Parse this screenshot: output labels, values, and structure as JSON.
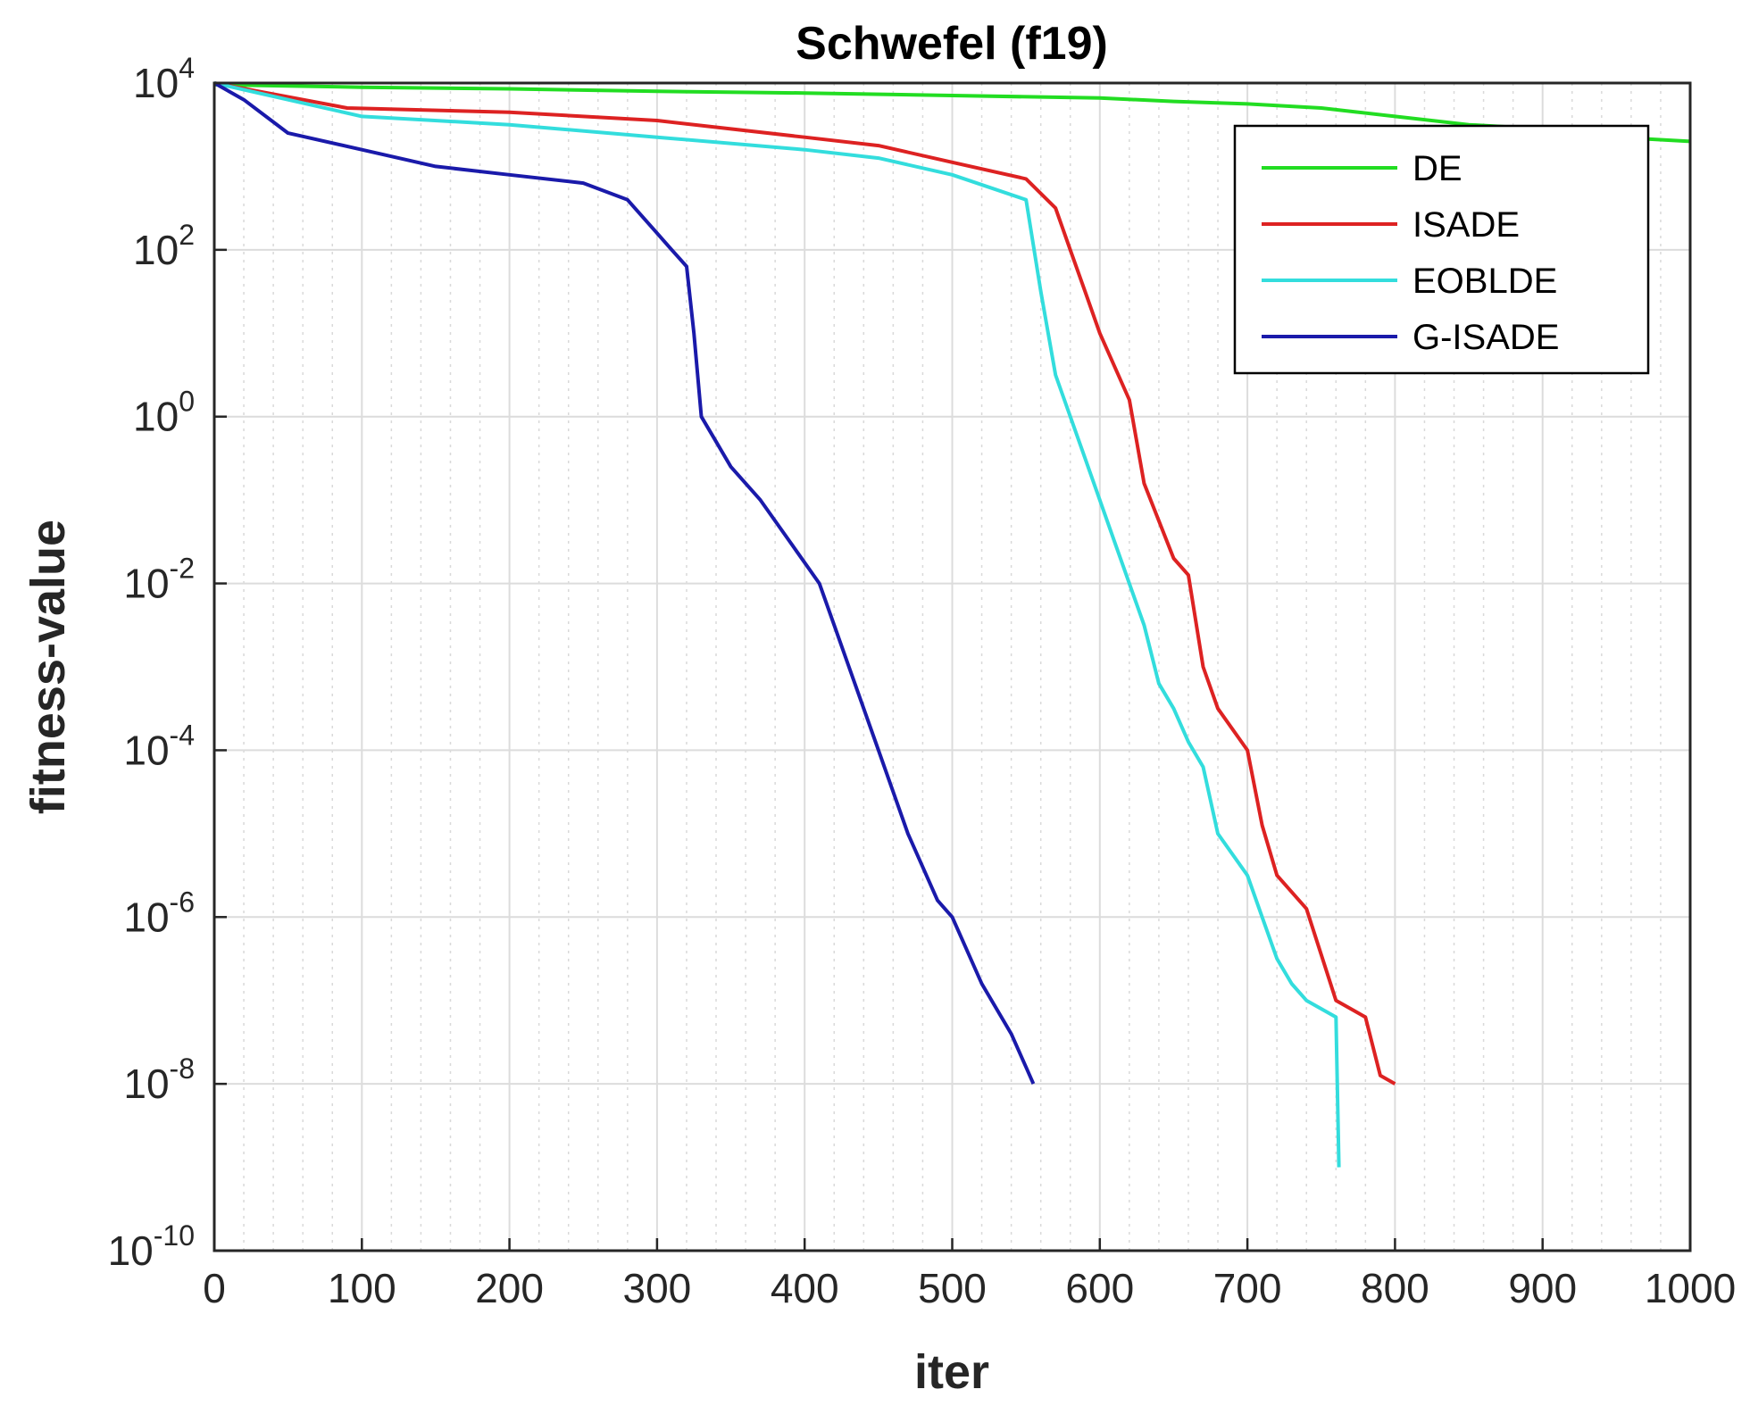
{
  "chart_data": {
    "type": "line",
    "title": "Schwefel (f19)",
    "xlabel": "iter",
    "ylabel": "fitness-value",
    "xlim": [
      0,
      1000
    ],
    "ylim_log10": [
      -10,
      4
    ],
    "yscale": "log",
    "grid": true,
    "legend_position": "top-right",
    "x_ticks": [
      {
        "value": 0,
        "label": "0"
      },
      {
        "value": 100,
        "label": "100"
      },
      {
        "value": 200,
        "label": "200"
      },
      {
        "value": 300,
        "label": "300"
      },
      {
        "value": 400,
        "label": "400"
      },
      {
        "value": 500,
        "label": "500"
      },
      {
        "value": 600,
        "label": "600"
      },
      {
        "value": 700,
        "label": "700"
      },
      {
        "value": 800,
        "label": "800"
      },
      {
        "value": 900,
        "label": "900"
      },
      {
        "value": 1000,
        "label": "1000"
      }
    ],
    "y_ticks": [
      {
        "exp": 4,
        "base": "10",
        "sup": "4"
      },
      {
        "exp": 2,
        "base": "10",
        "sup": "2"
      },
      {
        "exp": 0,
        "base": "10",
        "sup": "0"
      },
      {
        "exp": -2,
        "base": "10",
        "sup": "-2"
      },
      {
        "exp": -4,
        "base": "10",
        "sup": "-4"
      },
      {
        "exp": -6,
        "base": "10",
        "sup": "-6"
      },
      {
        "exp": -8,
        "base": "10",
        "sup": "-8"
      },
      {
        "exp": -10,
        "base": "10",
        "sup": "-10"
      }
    ],
    "series": [
      {
        "name": "DE",
        "color": "#22dd22",
        "x": [
          0,
          100,
          200,
          300,
          400,
          500,
          600,
          650,
          700,
          750,
          800,
          850,
          900,
          950,
          1000
        ],
        "log10_y": [
          3.98,
          3.95,
          3.93,
          3.9,
          3.88,
          3.85,
          3.82,
          3.78,
          3.75,
          3.7,
          3.6,
          3.5,
          3.45,
          3.35,
          3.3
        ]
      },
      {
        "name": "ISADE",
        "color": "#dd2222",
        "x": [
          0,
          90,
          200,
          300,
          350,
          400,
          450,
          500,
          550,
          570,
          580,
          590,
          600,
          620,
          630,
          650,
          660,
          670,
          680,
          700,
          710,
          720,
          740,
          760,
          780,
          790,
          800
        ],
        "log10_y": [
          4.0,
          3.7,
          3.65,
          3.55,
          3.45,
          3.35,
          3.25,
          3.05,
          2.85,
          2.5,
          2.0,
          1.5,
          1.0,
          0.2,
          -0.8,
          -1.7,
          -1.9,
          -3.0,
          -3.5,
          -4.0,
          -4.9,
          -5.5,
          -5.9,
          -7.0,
          -7.2,
          -7.9,
          -8.0
        ]
      },
      {
        "name": "EOBLDE",
        "color": "#33dddd",
        "x": [
          0,
          50,
          100,
          200,
          300,
          400,
          450,
          500,
          550,
          560,
          570,
          590,
          610,
          630,
          640,
          650,
          660,
          670,
          680,
          700,
          710,
          720,
          730,
          740,
          760,
          762
        ],
        "log10_y": [
          4.0,
          3.8,
          3.6,
          3.5,
          3.35,
          3.2,
          3.1,
          2.9,
          2.6,
          1.5,
          0.5,
          -0.5,
          -1.5,
          -2.5,
          -3.2,
          -3.5,
          -3.9,
          -4.2,
          -5.0,
          -5.5,
          -6.0,
          -6.5,
          -6.8,
          -7.0,
          -7.2,
          -9.0
        ]
      },
      {
        "name": "G-ISADE",
        "color": "#1a1aaa",
        "x": [
          0,
          20,
          50,
          100,
          150,
          200,
          250,
          280,
          300,
          310,
          320,
          325,
          330,
          340,
          350,
          370,
          390,
          410,
          420,
          430,
          450,
          470,
          490,
          500,
          520,
          540,
          550,
          555
        ],
        "log10_y": [
          4.0,
          3.8,
          3.4,
          3.2,
          3.0,
          2.9,
          2.8,
          2.6,
          2.2,
          2.0,
          1.8,
          1.0,
          0.0,
          -0.3,
          -0.6,
          -1.0,
          -1.5,
          -2.0,
          -2.5,
          -3.0,
          -4.0,
          -5.0,
          -5.8,
          -6.0,
          -6.8,
          -7.4,
          -7.8,
          -8.0
        ]
      }
    ]
  }
}
